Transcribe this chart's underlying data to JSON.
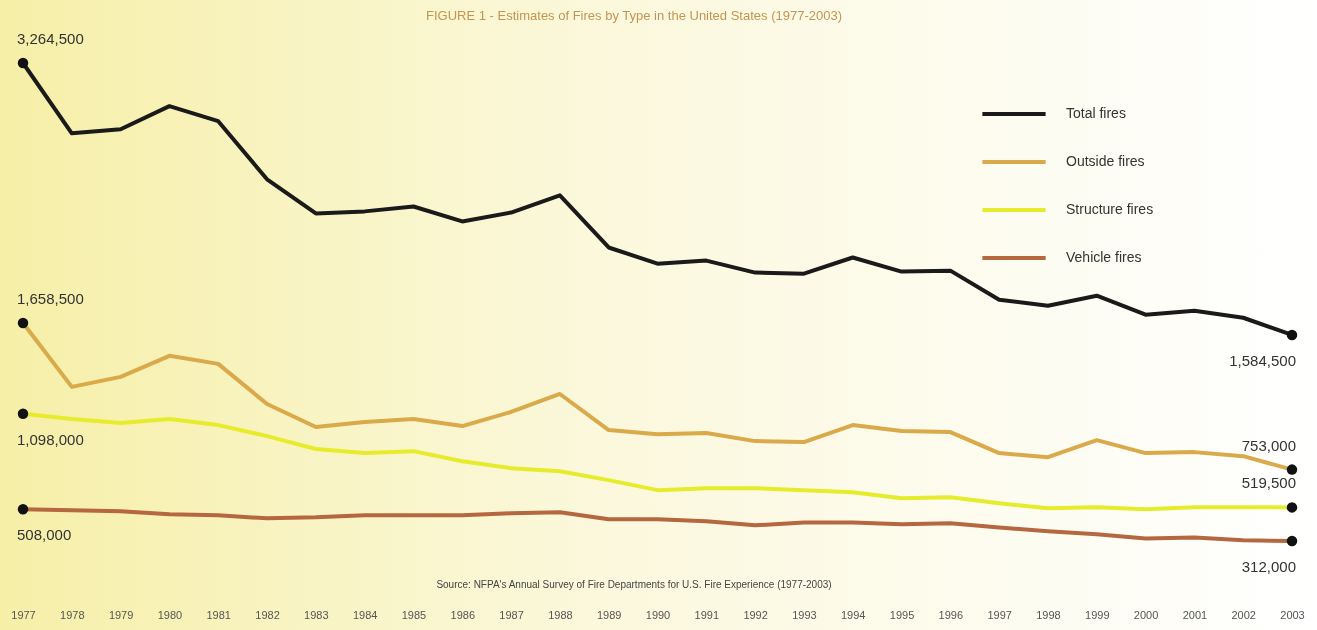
{
  "chart_data": {
    "type": "line",
    "title": "FIGURE 1 - Estimates of Fires by Type in the United States (1977-2003)",
    "categories": [
      "1977",
      "1978",
      "1979",
      "1980",
      "1981",
      "1982",
      "1983",
      "1984",
      "1985",
      "1986",
      "1987",
      "1988",
      "1989",
      "1990",
      "1991",
      "1992",
      "1993",
      "1994",
      "1995",
      "1996",
      "1997",
      "1998",
      "1999",
      "2000",
      "2001",
      "2002",
      "2003"
    ],
    "series": [
      {
        "name": "Total fires",
        "color": "#1a1a1a",
        "values": [
          3264500,
          2830000,
          2855000,
          2998000,
          2905000,
          2546000,
          2335000,
          2348000,
          2378000,
          2286000,
          2341000,
          2447000,
          2125000,
          2025000,
          2044000,
          1970000,
          1963000,
          2063000,
          1976000,
          1982000,
          1802000,
          1765000,
          1827000,
          1710000,
          1734000,
          1691000,
          1584500
        ],
        "value_labels": [
          "3,264,500",
          null,
          null,
          null,
          null,
          null,
          null,
          null,
          null,
          null,
          null,
          null,
          null,
          null,
          null,
          null,
          null,
          null,
          null,
          null,
          null,
          null,
          null,
          null,
          null,
          null,
          "1,584,500"
        ]
      },
      {
        "name": "Outside fires",
        "color": "#d9a94a",
        "values": [
          1658500,
          1264000,
          1326000,
          1456000,
          1406000,
          1158000,
          1016000,
          1047000,
          1065000,
          1022000,
          1109000,
          1220000,
          997000,
          972000,
          979000,
          929000,
          923000,
          1028000,
          991000,
          985000,
          855000,
          830000,
          935000,
          855000,
          861000,
          836000,
          753000
        ],
        "value_labels": [
          "1,658,500",
          null,
          null,
          null,
          null,
          null,
          null,
          null,
          null,
          null,
          null,
          null,
          null,
          null,
          null,
          null,
          null,
          null,
          null,
          null,
          null,
          null,
          null,
          null,
          null,
          null,
          "753,000"
        ]
      },
      {
        "name": "Structure fires",
        "color": "#e6ec2c",
        "values": [
          1098000,
          1065000,
          1041000,
          1065000,
          1028000,
          960000,
          880000,
          855000,
          867000,
          805000,
          762000,
          743000,
          688000,
          626000,
          638000,
          638000,
          626000,
          613000,
          576000,
          582000,
          545000,
          514000,
          520000,
          508000,
          520000,
          520000,
          519500
        ],
        "value_labels": [
          "1,098,000",
          null,
          null,
          null,
          null,
          null,
          null,
          null,
          null,
          null,
          null,
          null,
          null,
          null,
          null,
          null,
          null,
          null,
          null,
          null,
          null,
          null,
          null,
          null,
          null,
          null,
          "519,500"
        ]
      },
      {
        "name": "Vehicle fires",
        "color": "#b5673f",
        "values": [
          508000,
          502000,
          496000,
          477000,
          471000,
          452000,
          458000,
          471000,
          471000,
          471000,
          483000,
          489000,
          446000,
          446000,
          434000,
          409000,
          427000,
          427000,
          415000,
          421000,
          396000,
          372000,
          353000,
          328000,
          334000,
          316000,
          312000
        ],
        "value_labels": [
          "508,000",
          null,
          null,
          null,
          null,
          null,
          null,
          null,
          null,
          null,
          null,
          null,
          null,
          null,
          null,
          null,
          null,
          null,
          null,
          null,
          null,
          null,
          null,
          null,
          null,
          null,
          "312,000"
        ]
      }
    ],
    "tick_labels": "x",
    "grid": false,
    "legend": "top right",
    "line_style": "solid",
    "annotations": [
      "Source: NFPA's Annual Survey of Fire Departments for U.S. Fire Experience (1977-2003)"
    ]
  }
}
